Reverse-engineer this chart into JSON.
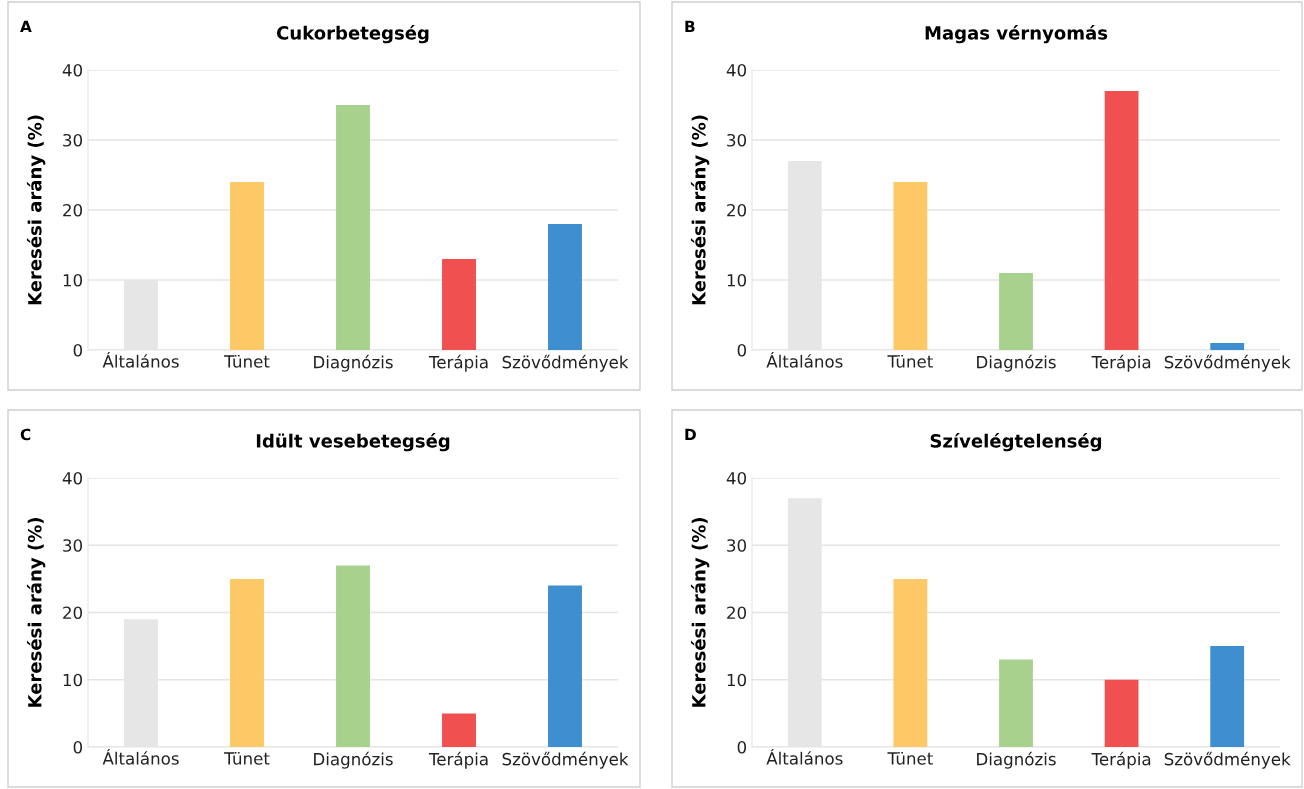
{
  "chart_data": [
    {
      "type": "bar",
      "title": "Cukorbetegség",
      "annotations": [
        "A"
      ],
      "ylabel": "Keresési arány (%)",
      "categories": [
        "Általános",
        "Tünet",
        "Diagnózis",
        "Terápia",
        "Szövődmények"
      ],
      "values": [
        10,
        24,
        35,
        13,
        18
      ],
      "colors": [
        "#e6e6e6",
        "#fdc966",
        "#a8d18d",
        "#f05050",
        "#3f8fd0"
      ],
      "ylim": [
        0,
        40
      ],
      "yticks": [
        0,
        10,
        20,
        30,
        40
      ],
      "grid": "y"
    },
    {
      "type": "bar",
      "title": "Magas vérnyomás",
      "annotations": [
        "B"
      ],
      "ylabel": "Keresési arány (%)",
      "categories": [
        "Általános",
        "Tünet",
        "Diagnózis",
        "Terápia",
        "Szövődmények"
      ],
      "values": [
        27,
        24,
        11,
        37,
        1
      ],
      "colors": [
        "#e6e6e6",
        "#fdc966",
        "#a8d18d",
        "#f05050",
        "#3f8fd0"
      ],
      "ylim": [
        0,
        40
      ],
      "yticks": [
        0,
        10,
        20,
        30,
        40
      ],
      "grid": "y"
    },
    {
      "type": "bar",
      "title": "Idült vesebetegség",
      "annotations": [
        "C"
      ],
      "ylabel": "Keresési arány (%)",
      "categories": [
        "Általános",
        "Tünet",
        "Diagnózis",
        "Terápia",
        "Szövődmények"
      ],
      "values": [
        19,
        25,
        27,
        5,
        24
      ],
      "colors": [
        "#e6e6e6",
        "#fdc966",
        "#a8d18d",
        "#f05050",
        "#3f8fd0"
      ],
      "ylim": [
        0,
        40
      ],
      "yticks": [
        0,
        10,
        20,
        30,
        40
      ],
      "grid": "y"
    },
    {
      "type": "bar",
      "title": "Szívelégtelenség",
      "annotations": [
        "D"
      ],
      "ylabel": "Keresési arány (%)",
      "categories": [
        "Általános",
        "Tünet",
        "Diagnózis",
        "Terápia",
        "Szövődmények"
      ],
      "values": [
        37,
        25,
        13,
        10,
        15
      ],
      "colors": [
        "#e6e6e6",
        "#fdc966",
        "#a8d18d",
        "#f05050",
        "#3f8fd0"
      ],
      "ylim": [
        0,
        40
      ],
      "yticks": [
        0,
        10,
        20,
        30,
        40
      ],
      "grid": "y"
    }
  ]
}
